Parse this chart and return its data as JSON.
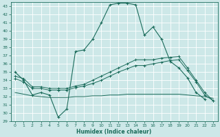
{
  "xlabel": "Humidex (Indice chaleur)",
  "xlim": [
    -0.5,
    23.5
  ],
  "ylim": [
    29,
    43.5
  ],
  "yticks": [
    29,
    30,
    31,
    32,
    33,
    34,
    35,
    36,
    37,
    38,
    39,
    40,
    41,
    42,
    43
  ],
  "xticks": [
    0,
    1,
    2,
    3,
    4,
    5,
    6,
    7,
    8,
    9,
    10,
    11,
    12,
    13,
    14,
    15,
    16,
    17,
    18,
    19,
    20,
    21,
    22,
    23
  ],
  "bg_color": "#cde8e8",
  "line_color": "#1a6b5a",
  "grid_color": "#b8d8d8",
  "series": {
    "main": {
      "x": [
        0,
        1,
        2,
        3,
        4,
        5,
        6,
        7,
        8,
        9,
        10,
        11,
        12,
        13,
        14,
        15,
        16,
        17,
        18,
        19,
        20,
        21,
        22
      ],
      "y": [
        35,
        34,
        32.2,
        32.5,
        32.2,
        29.5,
        30.5,
        37.5,
        37.7,
        39,
        41,
        43.2,
        43.4,
        43.4,
        43.2,
        39.5,
        40.5,
        39,
        36.3,
        35.5,
        34.3,
        32.5,
        31.7
      ]
    },
    "line2": {
      "x": [
        0,
        1,
        2,
        3,
        4,
        5,
        6,
        7,
        8,
        9,
        10,
        11,
        12,
        13,
        14,
        15,
        16,
        17,
        18,
        19,
        20,
        21,
        22,
        23
      ],
      "y": [
        34.5,
        34.2,
        33.2,
        33.2,
        33.0,
        33.0,
        33.0,
        33.3,
        33.5,
        34.0,
        34.5,
        35.0,
        35.5,
        36.0,
        36.5,
        36.5,
        36.5,
        36.7,
        36.8,
        36.9,
        35.5,
        34.0,
        32.5,
        31.5
      ]
    },
    "line3": {
      "x": [
        0,
        1,
        2,
        3,
        4,
        5,
        6,
        7,
        8,
        9,
        10,
        11,
        12,
        13,
        14,
        15,
        16,
        17,
        18,
        19,
        20,
        21,
        22,
        23
      ],
      "y": [
        34.2,
        33.8,
        33.0,
        33.0,
        32.8,
        32.8,
        32.8,
        33.1,
        33.3,
        33.6,
        34.0,
        34.5,
        35.0,
        35.4,
        35.8,
        35.8,
        36.0,
        36.2,
        36.4,
        36.5,
        35.2,
        33.8,
        32.2,
        31.5
      ]
    },
    "line4": {
      "x": [
        0,
        1,
        2,
        3,
        4,
        5,
        6,
        7,
        8,
        9,
        10,
        11,
        12,
        13,
        14,
        15,
        16,
        17,
        18,
        19,
        20,
        21,
        22,
        23
      ],
      "y": [
        32.5,
        32.3,
        32.1,
        32.0,
        31.9,
        31.9,
        31.9,
        32.0,
        32.0,
        32.1,
        32.1,
        32.2,
        32.2,
        32.3,
        32.3,
        32.3,
        32.3,
        32.3,
        32.3,
        32.3,
        32.2,
        32.1,
        32.0,
        31.8
      ]
    }
  }
}
